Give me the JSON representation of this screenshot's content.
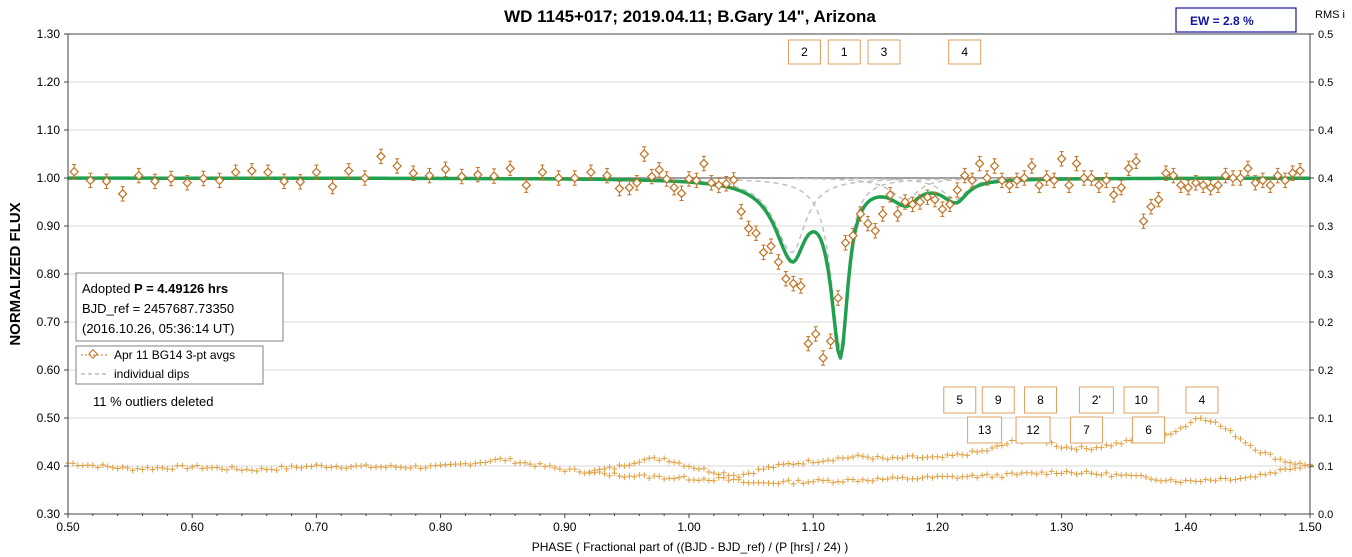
{
  "chart_data": {
    "type": "scatter",
    "title": "WD 1145+017; 2019.04.11; B.Gary 14\", Arizona",
    "xlabel": "PHASE ( Fractional part of ((BJD - BJD_ref) / (P [hrs] / 24) )",
    "ylabel": "NORMALIZED FLUX",
    "y2label": "RMS i",
    "xlim": [
      0.5,
      1.5
    ],
    "ylim": [
      0.3,
      1.3
    ],
    "y2lim": [
      0.0,
      0.5
    ],
    "xticks": [
      "0.50",
      "0.60",
      "0.70",
      "0.80",
      "0.90",
      "1.00",
      "1.10",
      "1.20",
      "1.30",
      "1.40",
      "1.50"
    ],
    "yticks": [
      "0.30",
      "0.40",
      "0.50",
      "0.60",
      "0.70",
      "0.80",
      "0.90",
      "1.00",
      "1.10",
      "1.20",
      "1.30"
    ],
    "y2ticks": [
      "0.0",
      "0.1",
      "0.1",
      "0.2",
      "0.2",
      "0.3",
      "0.3",
      "0.4",
      "0.4",
      "0.5",
      "0.5"
    ],
    "ew_label": "EW =  2.8 %",
    "info": {
      "line1_prefix": "Adopted ",
      "line1_bold": "P = 4.49126 hrs",
      "line2": "BJD_ref = 2457687.73350",
      "line3": "(2016.10.26, 05:36:14 UT)"
    },
    "legend": [
      {
        "label": "Apr 11 BG14 3-pt avgs",
        "color": "#c07020"
      },
      {
        "label": "individual dips",
        "color": "#bbbbbb"
      }
    ],
    "outliers_note": "11 % outliers deleted",
    "colors": {
      "data": "#c07020",
      "model": "#22a050",
      "dips": "#c0c0c0",
      "baseline": "#a0a0a0",
      "rms": "#e0a040",
      "labels_border": "#e0a060"
    },
    "series": [
      {
        "label": "Apr 11 BG14 3-pt avgs",
        "x": [
          0.505,
          0.518,
          0.531,
          0.544,
          0.557,
          0.57,
          0.583,
          0.596,
          0.609,
          0.622,
          0.635,
          0.648,
          0.661,
          0.674,
          0.687,
          0.7,
          0.713,
          0.726,
          0.739,
          0.752,
          0.765,
          0.778,
          0.791,
          0.804,
          0.817,
          0.83,
          0.843,
          0.856,
          0.869,
          0.882,
          0.895,
          0.908,
          0.921,
          0.934,
          0.944,
          0.952,
          0.958,
          0.964,
          0.97,
          0.976,
          0.982,
          0.988,
          0.994,
          1.0,
          1.006,
          1.012,
          1.018,
          1.024,
          1.03,
          1.036,
          1.042,
          1.048,
          1.054,
          1.06,
          1.066,
          1.072,
          1.078,
          1.084,
          1.09,
          1.096,
          1.102,
          1.108,
          1.114,
          1.12,
          1.126,
          1.132,
          1.138,
          1.144,
          1.15,
          1.156,
          1.162,
          1.168,
          1.174,
          1.18,
          1.186,
          1.192,
          1.198,
          1.204,
          1.21,
          1.216,
          1.222,
          1.228,
          1.234,
          1.24,
          1.246,
          1.252,
          1.258,
          1.264,
          1.27,
          1.276,
          1.282,
          1.288,
          1.294,
          1.3,
          1.306,
          1.312,
          1.318,
          1.324,
          1.33,
          1.336,
          1.342,
          1.348,
          1.354,
          1.36,
          1.366,
          1.372,
          1.378,
          1.384,
          1.39,
          1.396,
          1.402,
          1.408,
          1.414,
          1.42,
          1.426,
          1.432,
          1.438,
          1.444,
          1.45,
          1.456,
          1.462,
          1.468,
          1.474,
          1.48,
          1.486,
          1.492
        ],
        "y": [
          1.013,
          0.995,
          0.993,
          0.967,
          1.005,
          0.993,
          0.999,
          0.99,
          0.999,
          0.995,
          1.012,
          1.015,
          1.012,
          0.993,
          0.992,
          1.012,
          0.982,
          1.015,
          1.0,
          1.045,
          1.025,
          1.01,
          1.005,
          1.018,
          1.003,
          1.007,
          1.004,
          1.02,
          0.985,
          1.012,
          1.0,
          1.0,
          1.012,
          1.005,
          0.978,
          0.98,
          0.99,
          1.05,
          1.003,
          1.017,
          0.998,
          0.98,
          0.968,
          0.998,
          0.995,
          1.03,
          0.99,
          0.985,
          0.988,
          0.996,
          0.93,
          0.895,
          0.885,
          0.845,
          0.858,
          0.825,
          0.79,
          0.78,
          0.775,
          0.655,
          0.675,
          0.625,
          0.66,
          0.75,
          0.865,
          0.88,
          0.925,
          0.905,
          0.89,
          0.925,
          0.965,
          0.925,
          0.95,
          0.945,
          0.95,
          0.96,
          0.955,
          0.935,
          0.945,
          0.975,
          1.005,
          0.995,
          1.03,
          1.0,
          1.025,
          0.995,
          0.985,
          0.995,
          1.0,
          1.025,
          0.985,
          1.0,
          0.995,
          1.04,
          0.985,
          1.03,
          1.0,
          1.0,
          0.985,
          0.995,
          0.965,
          0.98,
          1.02,
          1.035,
          0.91,
          0.94,
          0.955,
          1.01,
          1.005,
          0.985,
          0.98,
          0.99,
          0.985,
          0.98,
          0.985,
          1.005,
          1.0,
          1.0,
          1.02,
          0.99,
          0.995,
          0.985,
          1.005,
          0.995,
          1.01,
          1.015
        ],
        "err": 0.015
      }
    ],
    "dips": [
      {
        "center": 1.055,
        "depth": 0.0,
        "width": 0.01
      },
      {
        "center": 1.083,
        "depth": 0.155,
        "width": 0.022
      },
      {
        "center": 1.122,
        "depth": 0.355,
        "width": 0.012
      },
      {
        "center": 1.175,
        "depth": 0.045,
        "width": 0.02
      },
      {
        "center": 1.215,
        "depth": 0.045,
        "width": 0.018
      }
    ],
    "rms_upper": {
      "x": [
        0.5,
        0.55,
        0.6,
        0.65,
        0.7,
        0.75,
        0.8,
        0.85,
        0.9,
        0.92,
        0.94,
        0.96,
        0.98,
        1.0,
        1.02,
        1.04,
        1.06,
        1.08,
        1.1,
        1.12,
        1.14,
        1.16,
        1.18,
        1.2,
        1.22,
        1.24,
        1.26,
        1.28,
        1.3,
        1.32,
        1.34,
        1.36,
        1.38,
        1.4,
        1.41,
        1.42,
        1.44,
        1.46,
        1.48,
        1.5
      ],
      "y": [
        0.053,
        0.047,
        0.049,
        0.046,
        0.05,
        0.049,
        0.049,
        0.057,
        0.046,
        0.044,
        0.048,
        0.056,
        0.058,
        0.05,
        0.044,
        0.04,
        0.047,
        0.052,
        0.055,
        0.058,
        0.06,
        0.057,
        0.059,
        0.058,
        0.062,
        0.066,
        0.075,
        0.079,
        0.07,
        0.068,
        0.072,
        0.077,
        0.08,
        0.092,
        0.101,
        0.098,
        0.082,
        0.065,
        0.055,
        0.05
      ]
    },
    "rms_lower": {
      "x": [
        0.92,
        0.95,
        1.0,
        1.03,
        1.05,
        1.1,
        1.15,
        1.2,
        1.25,
        1.3,
        1.35,
        1.4,
        1.42,
        1.45,
        1.5
      ],
      "y": [
        0.043,
        0.04,
        0.037,
        0.036,
        0.032,
        0.034,
        0.036,
        0.038,
        0.04,
        0.044,
        0.04,
        0.034,
        0.036,
        0.038,
        0.052
      ]
    },
    "labels_top": [
      {
        "text": "2",
        "x": 1.093
      },
      {
        "text": "1",
        "x": 1.125
      },
      {
        "text": "3",
        "x": 1.157
      },
      {
        "text": "4",
        "x": 1.222
      }
    ],
    "labels_bottom_row1": [
      {
        "text": "5",
        "x": 1.218
      },
      {
        "text": "9",
        "x": 1.249
      },
      {
        "text": "8",
        "x": 1.283
      },
      {
        "text": "2'",
        "x": 1.328
      },
      {
        "text": "10",
        "x": 1.364
      },
      {
        "text": "4",
        "x": 1.413
      }
    ],
    "labels_bottom_row2": [
      {
        "text": "13",
        "x": 1.238
      },
      {
        "text": "12",
        "x": 1.277
      },
      {
        "text": "7",
        "x": 1.32
      },
      {
        "text": "6",
        "x": 1.37
      }
    ]
  }
}
